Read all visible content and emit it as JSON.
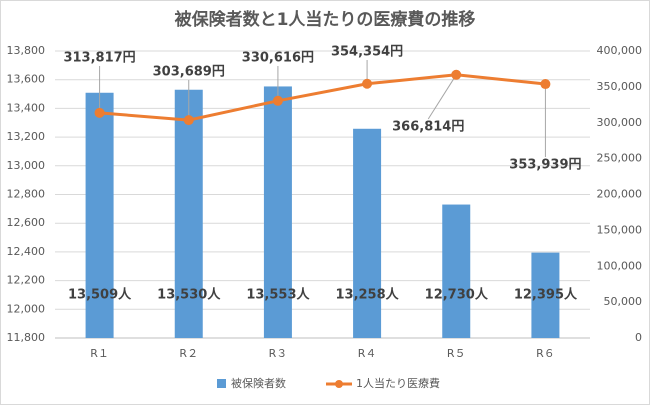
{
  "chart_data": {
    "type": "bar_line",
    "title": "被保険者数と1人当たりの医療費の推移",
    "categories": [
      "R１",
      "R２",
      "R３",
      "R４",
      "R５",
      "R６"
    ],
    "series": [
      {
        "name": "被保険者数",
        "type": "bar",
        "color": "#5b9bd5",
        "axis": "y",
        "values": [
          13509,
          13530,
          13553,
          13258,
          12730,
          12395
        ],
        "value_labels": [
          "13,509人",
          "13,530人",
          "13,553人",
          "13,258人",
          "12,730人",
          "12,395人"
        ]
      },
      {
        "name": "1人当たり医療費",
        "type": "line",
        "color": "#ed7d31",
        "axis": "y2",
        "values": [
          313817,
          303689,
          330616,
          354354,
          366814,
          353939
        ],
        "value_labels": [
          "313,817円",
          "303,689円",
          "330,616円",
          "354,354円",
          "366,814円",
          "353,939円"
        ]
      }
    ],
    "ylim": [
      11800,
      13800
    ],
    "yticks": [
      {
        "value": 11800,
        "label": "11,800"
      },
      {
        "value": 12000,
        "label": "12,000"
      },
      {
        "value": 12200,
        "label": "12,200"
      },
      {
        "value": 12400,
        "label": "12,400"
      },
      {
        "value": 12600,
        "label": "12,600"
      },
      {
        "value": 12800,
        "label": "12,800"
      },
      {
        "value": 13000,
        "label": "13,000"
      },
      {
        "value": 13200,
        "label": "13,200"
      },
      {
        "value": 13400,
        "label": "13,400"
      },
      {
        "value": 13600,
        "label": "13,600"
      },
      {
        "value": 13800,
        "label": "13,800"
      }
    ],
    "y2lim": [
      0,
      400000
    ],
    "y2ticks": [
      0,
      {
        "value": 50000,
        "label": "50,000"
      },
      {
        "value": 100000,
        "label": "100,000"
      },
      {
        "value": 150000,
        "label": "150,000"
      },
      {
        "value": 200000,
        "label": "200,000"
      },
      {
        "value": 250000,
        "label": "250,000"
      },
      {
        "value": 300000,
        "label": "300,000"
      },
      {
        "value": 350000,
        "label": "350,000"
      },
      {
        "value": 400000,
        "label": "400,000"
      }
    ],
    "legend": "bottom"
  }
}
